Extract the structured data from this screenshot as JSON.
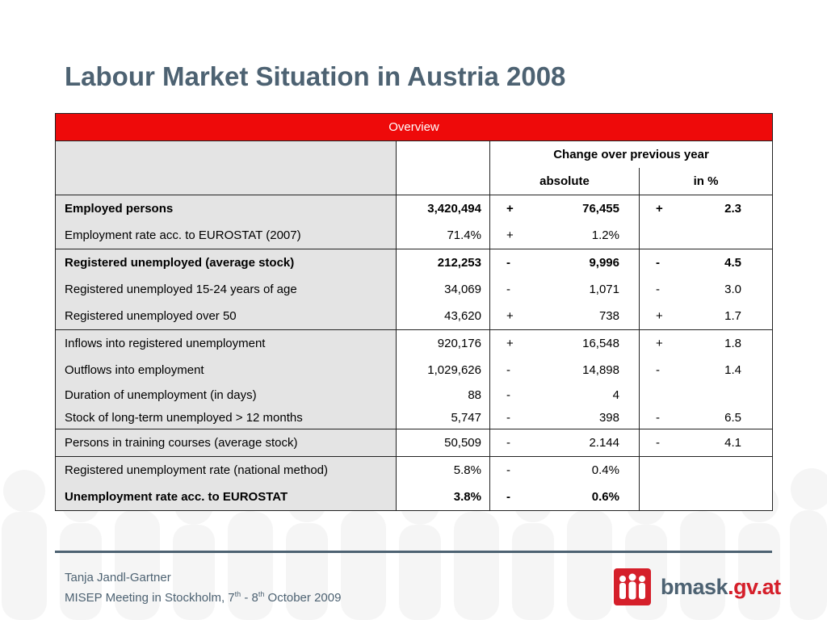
{
  "slide": {
    "title": "Labour Market Situation in Austria 2008"
  },
  "table": {
    "overview_label": "Overview",
    "change_header": "Change over previous year",
    "absolute_header": "absolute",
    "percent_header": "in %",
    "rows": [
      {
        "label": "Employed persons",
        "value": "3,420,494",
        "abs_sign": "+",
        "abs": "76,455",
        "pct_sign": "+",
        "pct": "2.3"
      },
      {
        "label": "Employment rate acc. to EUROSTAT (2007)",
        "value": "71.4%",
        "abs_sign": "+",
        "abs": "1.2%",
        "pct_sign": "",
        "pct": ""
      },
      {
        "label": "Registered unemployed (average stock)",
        "value": "212,253",
        "abs_sign": "-",
        "abs": "9,996",
        "pct_sign": "-",
        "pct": "4.5"
      },
      {
        "label": "Registered unemployed 15-24 years of age",
        "value": "34,069",
        "abs_sign": "-",
        "abs": "1,071",
        "pct_sign": "-",
        "pct": "3.0"
      },
      {
        "label": "Registered unemployed over 50",
        "value": "43,620",
        "abs_sign": "+",
        "abs": "738",
        "pct_sign": "+",
        "pct": "1.7"
      },
      {
        "label": "Inflows into registered unemployment",
        "value": "920,176",
        "abs_sign": "+",
        "abs": "16,548",
        "pct_sign": "+",
        "pct": "1.8"
      },
      {
        "label": "Outflows into employment",
        "value": "1,029,626",
        "abs_sign": "-",
        "abs": "14,898",
        "pct_sign": "-",
        "pct": "1.4"
      },
      {
        "label": "Duration of unemployment (in days)",
        "value": "88",
        "abs_sign": "-",
        "abs": "4",
        "pct_sign": "",
        "pct": ""
      },
      {
        "label": "Stock of long-term unemployed > 12 months",
        "value": "5,747",
        "abs_sign": "-",
        "abs": "398",
        "pct_sign": "-",
        "pct": "6.5"
      },
      {
        "label": "Persons in training courses (average stock)",
        "value": "50,509",
        "abs_sign": "-",
        "abs": "2.144",
        "pct_sign": "-",
        "pct": "4.1"
      },
      {
        "label": "Registered unemployment rate (national method)",
        "value": "5.8%",
        "abs_sign": "-",
        "abs": "0.4%",
        "pct_sign": "",
        "pct": ""
      },
      {
        "label": "Unemployment rate acc. to EUROSTAT",
        "value": "3.8%",
        "abs_sign": "-",
        "abs": "0.6%",
        "pct_sign": "",
        "pct": ""
      }
    ]
  },
  "footer": {
    "author": "Tanja Jandl-Gartner",
    "meeting_prefix": "MISEP Meeting in Stockholm, 7",
    "sup1": "th",
    "meeting_mid": " - 8",
    "sup2": "th",
    "meeting_suffix": " October 2009"
  },
  "logo": {
    "name": "bmask",
    "tld": ".gv.at",
    "icon": "people-group-icon",
    "color": "#d51f2a"
  },
  "colors": {
    "title": "#4d6272",
    "header_red": "#ee0a0a",
    "label_bg": "#e4e4e4"
  }
}
